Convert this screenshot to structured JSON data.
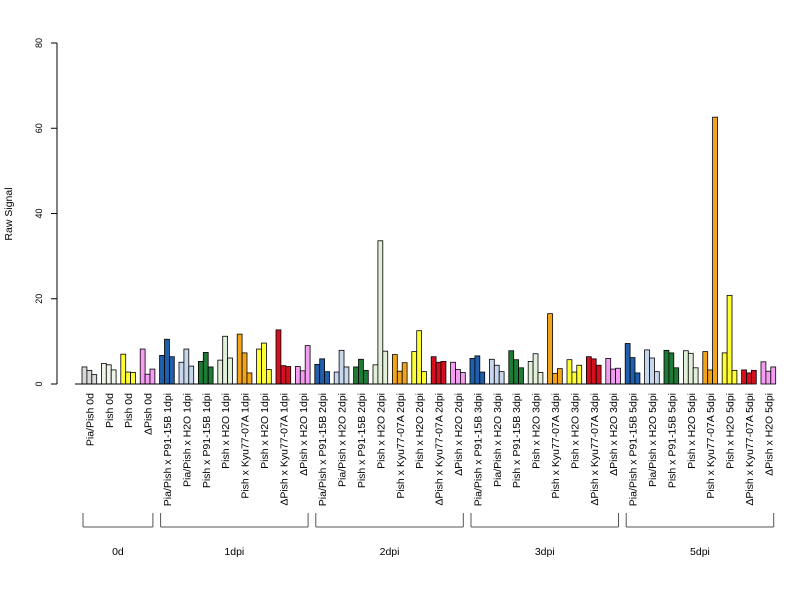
{
  "chart_data": {
    "type": "bar",
    "title": "",
    "xlabel": "",
    "ylabel": "Raw Signal",
    "ylim": [
      0,
      80
    ],
    "yticks": [
      0,
      20,
      40,
      60,
      80
    ],
    "grid": false,
    "legend": "none",
    "bars_per_category": 3,
    "categories": [
      {
        "label": "Pia/Pish 0d",
        "color": "#d9d9d9",
        "values": [
          4.0,
          3.2,
          2.2
        ]
      },
      {
        "label": "Pish 0d",
        "color": "#eef5e8",
        "values": [
          4.8,
          4.5,
          3.3
        ]
      },
      {
        "label": "Pish 0d",
        "color": "#ffff33",
        "values": [
          7.0,
          2.8,
          2.7
        ]
      },
      {
        "label": "ΔPish 0d",
        "color": "#f59df2",
        "values": [
          8.2,
          2.3,
          3.5
        ]
      },
      {
        "label": "Pia/Pish x P91-15B 1dpi",
        "color": "#1f5fab",
        "values": [
          6.7,
          10.5,
          6.4
        ]
      },
      {
        "label": "Pia/Pish x H2O 1dpi",
        "color": "#c6d7ee",
        "values": [
          5.1,
          8.2,
          4.2
        ]
      },
      {
        "label": "Pish x P91-15B 1dpi",
        "color": "#1f7a36",
        "values": [
          5.3,
          7.4,
          4.0
        ]
      },
      {
        "label": "Pish x H2O 1dpi",
        "color": "#e2f0da",
        "values": [
          5.6,
          11.2,
          6.1
        ]
      },
      {
        "label": "Pish x Kyu77-07A 1dpi",
        "color": "#f2a51c",
        "values": [
          11.7,
          7.3,
          2.6
        ]
      },
      {
        "label": "Pish x H2O 1dpi",
        "color": "#ffff33",
        "values": [
          8.2,
          9.6,
          3.4
        ]
      },
      {
        "label": "ΔPish x Kyu77-07A 1dpi",
        "color": "#d4101f",
        "values": [
          12.7,
          4.3,
          4.1
        ]
      },
      {
        "label": "ΔPish x H2O 1dpi",
        "color": "#f59df2",
        "values": [
          4.1,
          3.1,
          9.0
        ]
      },
      {
        "label": "Pia/Pish x P91-15B 2dpi",
        "color": "#1f5fab",
        "values": [
          4.6,
          5.9,
          2.9
        ]
      },
      {
        "label": "Pia/Pish x H2O 2dpi",
        "color": "#c6d7ee",
        "values": [
          2.8,
          7.9,
          4.0
        ]
      },
      {
        "label": "Pish x P91-15B 2dpi",
        "color": "#1f7a36",
        "values": [
          4.0,
          5.8,
          3.2
        ]
      },
      {
        "label": "Pish x H2O 2dpi",
        "color": "#e2f0da",
        "values": [
          4.5,
          33.6,
          7.7
        ]
      },
      {
        "label": "Pish x Kyu77-07A 2dpi",
        "color": "#f2a51c",
        "values": [
          6.9,
          3.0,
          5.0
        ]
      },
      {
        "label": "Pish x H2O 2dpi",
        "color": "#ffff33",
        "values": [
          7.6,
          12.5,
          2.9
        ]
      },
      {
        "label": "ΔPish x Kyu77-07A 2dpi",
        "color": "#d4101f",
        "values": [
          6.4,
          5.1,
          5.3
        ]
      },
      {
        "label": "ΔPish x H2O 2dpi",
        "color": "#f59df2",
        "values": [
          5.1,
          3.4,
          2.7
        ]
      },
      {
        "label": "Pia/Pish x P91-15B 3dpi",
        "color": "#1f5fab",
        "values": [
          6.0,
          6.6,
          2.8
        ]
      },
      {
        "label": "Pia/Pish x H2O 3dpi",
        "color": "#c6d7ee",
        "values": [
          5.8,
          4.4,
          2.9
        ]
      },
      {
        "label": "Pish x P91-15B 3dpi",
        "color": "#1f7a36",
        "values": [
          7.8,
          5.7,
          3.8
        ]
      },
      {
        "label": "Pish x H2O 3dpi",
        "color": "#e2f0da",
        "values": [
          5.3,
          7.1,
          2.7
        ]
      },
      {
        "label": "Pish x Kyu77-07A 3dpi",
        "color": "#f2a51c",
        "values": [
          16.5,
          2.5,
          3.6
        ]
      },
      {
        "label": "Pish x H2O 3dpi",
        "color": "#ffff33",
        "values": [
          5.7,
          2.8,
          4.4
        ]
      },
      {
        "label": "ΔPish x Kyu77-07A 3dpi",
        "color": "#d4101f",
        "values": [
          6.4,
          5.9,
          4.4
        ]
      },
      {
        "label": "ΔPish x H2O 3dpi",
        "color": "#f59df2",
        "values": [
          6.0,
          3.5,
          3.7
        ]
      },
      {
        "label": "Pia/Pish x P91-15B 5dpi",
        "color": "#1f5fab",
        "values": [
          9.5,
          6.2,
          2.6
        ]
      },
      {
        "label": "Pia/Pish x H2O 5dpi",
        "color": "#c6d7ee",
        "values": [
          8.0,
          6.1,
          2.9
        ]
      },
      {
        "label": "Pish x P91-15B 5dpi",
        "color": "#1f7a36",
        "values": [
          7.9,
          7.3,
          3.8
        ]
      },
      {
        "label": "Pish x H2O 5dpi",
        "color": "#e2f0da",
        "values": [
          7.8,
          7.2,
          3.8
        ]
      },
      {
        "label": "Pish x Kyu77-07A 5dpi",
        "color": "#f2a51c",
        "values": [
          7.6,
          3.3,
          62.6
        ]
      },
      {
        "label": "Pish x H2O 5dpi",
        "color": "#ffff33",
        "values": [
          7.3,
          20.8,
          3.2
        ]
      },
      {
        "label": "ΔPish x Kyu77-07A 5dpi",
        "color": "#d4101f",
        "values": [
          3.3,
          2.6,
          3.2
        ]
      },
      {
        "label": "ΔPish x H2O 5dpi",
        "color": "#f59df2",
        "values": [
          5.2,
          3.0,
          4.0
        ]
      }
    ],
    "groups": [
      {
        "label": "0d",
        "first": 0,
        "last": 3
      },
      {
        "label": "1dpi",
        "first": 4,
        "last": 11
      },
      {
        "label": "2dpi",
        "first": 12,
        "last": 19
      },
      {
        "label": "3dpi",
        "first": 20,
        "last": 27
      },
      {
        "label": "5dpi",
        "first": 28,
        "last": 35
      }
    ]
  }
}
